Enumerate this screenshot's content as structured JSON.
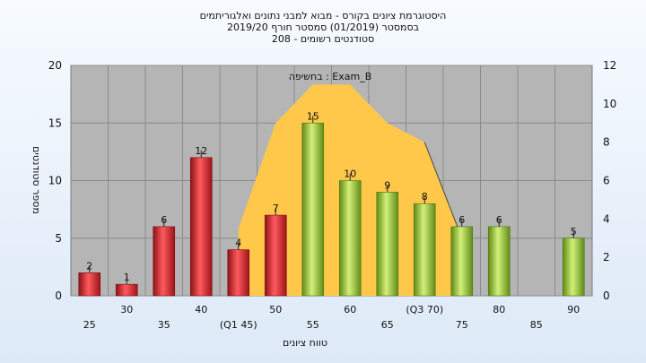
{
  "header": {
    "line1": "היסטוגרמת ציונים בקורס - מבוא למבני נתונים ואלגוריתמים",
    "line2": "בסמסטר  (01/2019)  סמסטר חורף  2019/20",
    "line3": "סטודנטים רשומים - 208"
  },
  "chart_data": {
    "type": "bar",
    "title": "היסטוגרמת ציונים בקורס - מבוא למבני נתונים ואלגוריתמים",
    "xlabel": "טווח ציונים",
    "ylabel": "מספר סטודנטים",
    "ylim": [
      0,
      20
    ],
    "y2lim": [
      0,
      12
    ],
    "yticks": [
      "0",
      "5",
      "10",
      "15",
      "20"
    ],
    "y2ticks": [
      "0",
      "2",
      "4",
      "6",
      "8",
      "10",
      "12"
    ],
    "xticks": [
      "25",
      "30",
      "35",
      "40",
      "(Q1 45)",
      "50",
      "55",
      "60",
      "65",
      "(Q3 70)",
      "75",
      "80",
      "85",
      "90"
    ],
    "grid": true,
    "categories": [
      "25",
      "30",
      "35",
      "40",
      "45",
      "50",
      "55",
      "60",
      "65",
      "70",
      "75",
      "80",
      "85",
      "90"
    ],
    "values": [
      2,
      1,
      6,
      12,
      4,
      7,
      15,
      10,
      9,
      8,
      6,
      6,
      0,
      5
    ],
    "data_labels": [
      "2",
      "1",
      "6",
      "12",
      "4",
      "7",
      "15",
      "10",
      "9",
      "8",
      "6",
      "6",
      "",
      "5"
    ],
    "bar_colors": [
      "#d9252b",
      "#d9252b",
      "#d9252b",
      "#d9252b",
      "#d9252b",
      "#d9252b",
      "#8fbc2e",
      "#8fbc2e",
      "#8fbc2e",
      "#8fbc2e",
      "#8fbc2e",
      "#8fbc2e",
      "#8fbc2e",
      "#8fbc2e"
    ],
    "overlay": {
      "label": "בחשיפה : Exam_B",
      "color": "#ffc84a",
      "points": [
        {
          "x": "45",
          "y2": 3.5
        },
        {
          "x": "50",
          "y2": 9
        },
        {
          "x": "55",
          "y2": 11
        },
        {
          "x": "60",
          "y2": 11
        },
        {
          "x": "65",
          "y2": 9
        },
        {
          "x": "70",
          "y2": 8
        },
        {
          "x": "75",
          "y2": 3
        }
      ]
    }
  }
}
